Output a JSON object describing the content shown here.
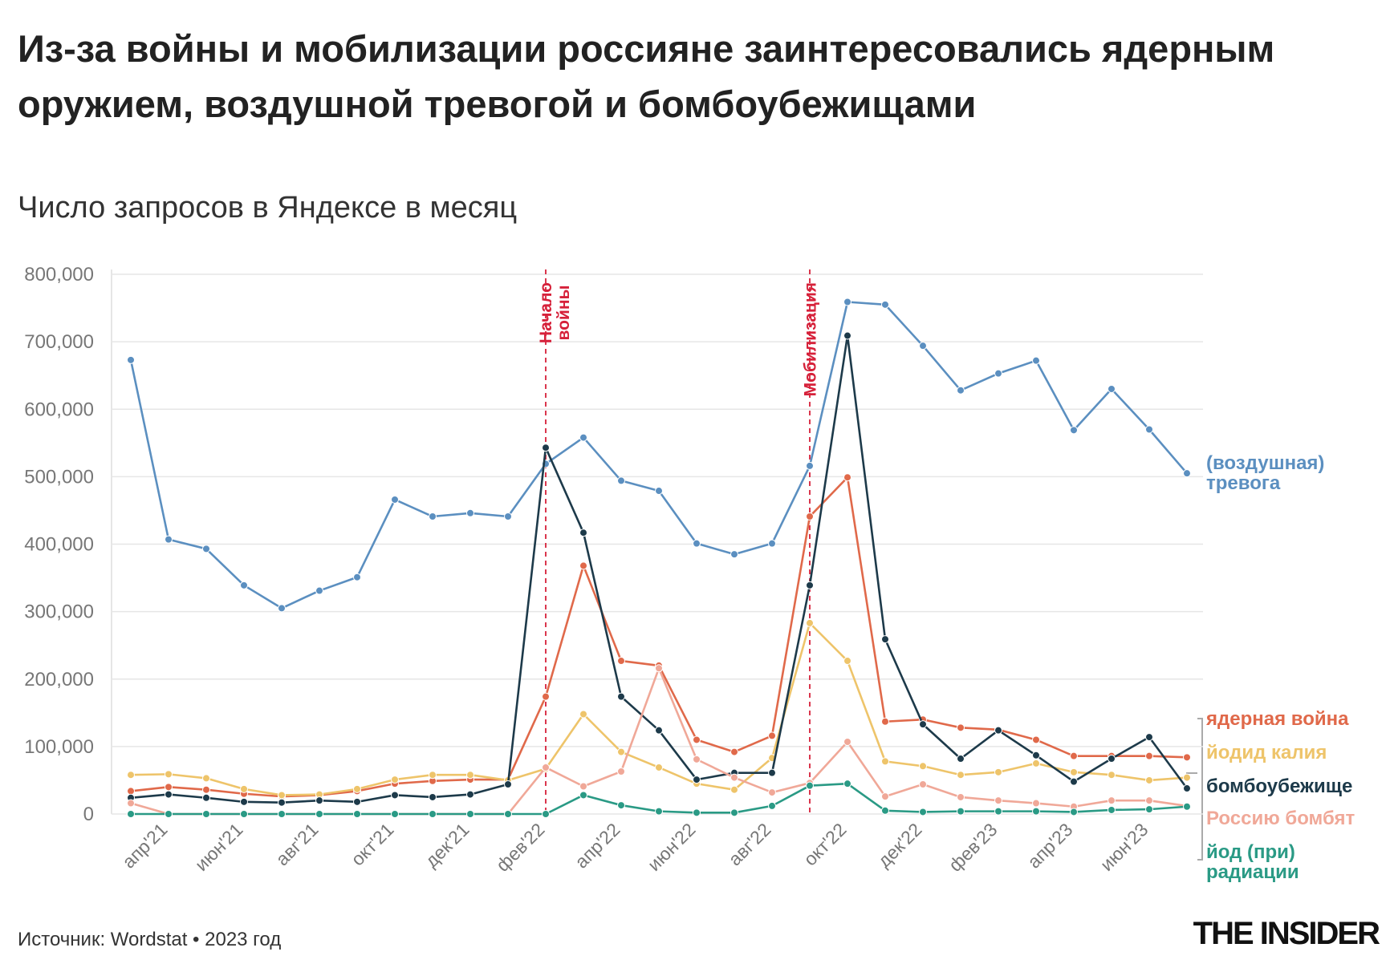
{
  "chart_data": {
    "type": "line",
    "title": "Из-за войны и мобилизации россияне заинтересовались ядерным оружием, воздушной тревогой и бомбоубежищами",
    "subtitle": "Число запросов в Яндексе в месяц",
    "source": "Источник: Wordstat • 2023 год",
    "brand": "THE INSIDER",
    "categories": [
      null,
      "апр'21",
      null,
      "июн'21",
      null,
      "авг'21",
      null,
      "окт'21",
      null,
      "дек'21",
      null,
      "фев'22",
      null,
      "апр'22",
      null,
      "июн'22",
      null,
      "авг'22",
      null,
      "окт'22",
      null,
      "дек'22",
      null,
      "фев'23",
      null,
      "апр'23",
      null,
      "июн'23",
      null
    ],
    "ylim": [
      0,
      800000
    ],
    "yticks": [
      0,
      {
        "value": 100000,
        "label": "100,000"
      },
      {
        "value": 200000,
        "label": "200,000"
      },
      {
        "value": 300000,
        "label": "300,000"
      },
      {
        "value": 400000,
        "label": "400,000"
      },
      {
        "value": 500000,
        "label": "500,000"
      },
      {
        "value": 600000,
        "label": "600,000"
      },
      {
        "value": 700000,
        "label": "700,000"
      },
      {
        "value": 800000,
        "label": "800,000"
      }
    ],
    "grid": true,
    "annotations": [
      {
        "text": "Начало\nвойны",
        "index": 11,
        "color": "#d6213a"
      },
      {
        "text": "Мобилизация",
        "index": 18,
        "color": "#d6213a"
      }
    ],
    "series": [
      {
        "name": "(воздушная)\nтревога",
        "color": "#5b8fc0",
        "values": [
          673000,
          407000,
          393000,
          339000,
          305000,
          331000,
          351000,
          466000,
          441000,
          446000,
          441000,
          519000,
          558000,
          494000,
          479000,
          401000,
          385000,
          401000,
          516000,
          759000,
          755000,
          694000,
          628000,
          653000,
          672000,
          569000,
          630000,
          570000,
          505000
        ]
      },
      {
        "name": "ядерная война",
        "color": "#e0694a",
        "values": [
          34000,
          40000,
          36000,
          30000,
          26000,
          28000,
          34000,
          45000,
          49000,
          51000,
          51000,
          174000,
          368000,
          227000,
          220000,
          110000,
          92000,
          116000,
          441000,
          499000,
          137000,
          140000,
          128000,
          125000,
          110000,
          86000,
          86000,
          86000,
          84000
        ]
      },
      {
        "name": "йодид калия",
        "color": "#eec46a",
        "values": [
          58000,
          59000,
          53000,
          37000,
          28000,
          29000,
          37000,
          51000,
          58000,
          58000,
          50000,
          67000,
          148000,
          92000,
          69000,
          45000,
          36000,
          83000,
          283000,
          227000,
          78000,
          71000,
          58000,
          62000,
          75000,
          62000,
          58000,
          50000,
          54000
        ]
      },
      {
        "name": "бомбоубежище",
        "color": "#1d3a4a",
        "values": [
          24000,
          29000,
          24000,
          18000,
          17000,
          20000,
          18000,
          28000,
          25000,
          29000,
          44000,
          543000,
          417000,
          174000,
          124000,
          51000,
          61000,
          61000,
          339000,
          709000,
          259000,
          133000,
          82000,
          124000,
          87000,
          48000,
          82000,
          114000,
          38000
        ]
      },
      {
        "name": "Россию бомбят",
        "color": "#f0a898",
        "values": [
          16000,
          0,
          0,
          0,
          0,
          0,
          0,
          0,
          0,
          0,
          0,
          69000,
          41000,
          63000,
          216000,
          81000,
          54000,
          32000,
          46000,
          107000,
          26000,
          44000,
          25000,
          20000,
          16000,
          11000,
          20000,
          20000,
          12000
        ]
      },
      {
        "name": "йод (при)\nрадиации",
        "color": "#2a9a85",
        "values": [
          0,
          0,
          0,
          0,
          0,
          0,
          0,
          0,
          0,
          0,
          0,
          0,
          28000,
          13000,
          4000,
          2000,
          2000,
          12000,
          42000,
          45000,
          5000,
          3000,
          4000,
          4000,
          4000,
          3000,
          6000,
          7000,
          11000
        ]
      }
    ]
  }
}
